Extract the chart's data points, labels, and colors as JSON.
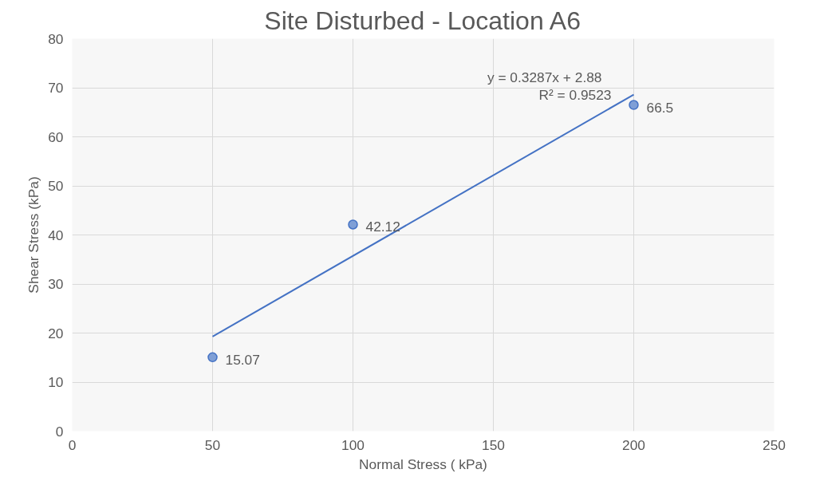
{
  "chart_data": {
    "type": "scatter",
    "title": "Site Disturbed - Location A6",
    "xlabel": "Normal Stress ( kPa)",
    "ylabel": "Shear Stress (kPa)",
    "xlim": [
      0,
      250
    ],
    "xticks": [
      0,
      50,
      100,
      150,
      200,
      250
    ],
    "ylim": [
      0,
      80
    ],
    "yticks": [
      0,
      10,
      20,
      30,
      40,
      50,
      60,
      70,
      80
    ],
    "grid": true,
    "series": [
      {
        "x": [
          50,
          100,
          200
        ],
        "values": [
          15.07,
          42.12,
          66.5
        ],
        "color": "#7f9fd6",
        "marker": "circle",
        "value_labels": [
          "15.07",
          "42.12",
          "66.5"
        ]
      },
      {
        "type": "line",
        "x": [
          50,
          200
        ],
        "values": [
          19.3,
          68.6
        ],
        "color": "#4472c4",
        "line_style": "solid"
      }
    ],
    "annotations": [
      "y = 0.3287x + 2.88",
      "R² = 0.9523"
    ]
  }
}
